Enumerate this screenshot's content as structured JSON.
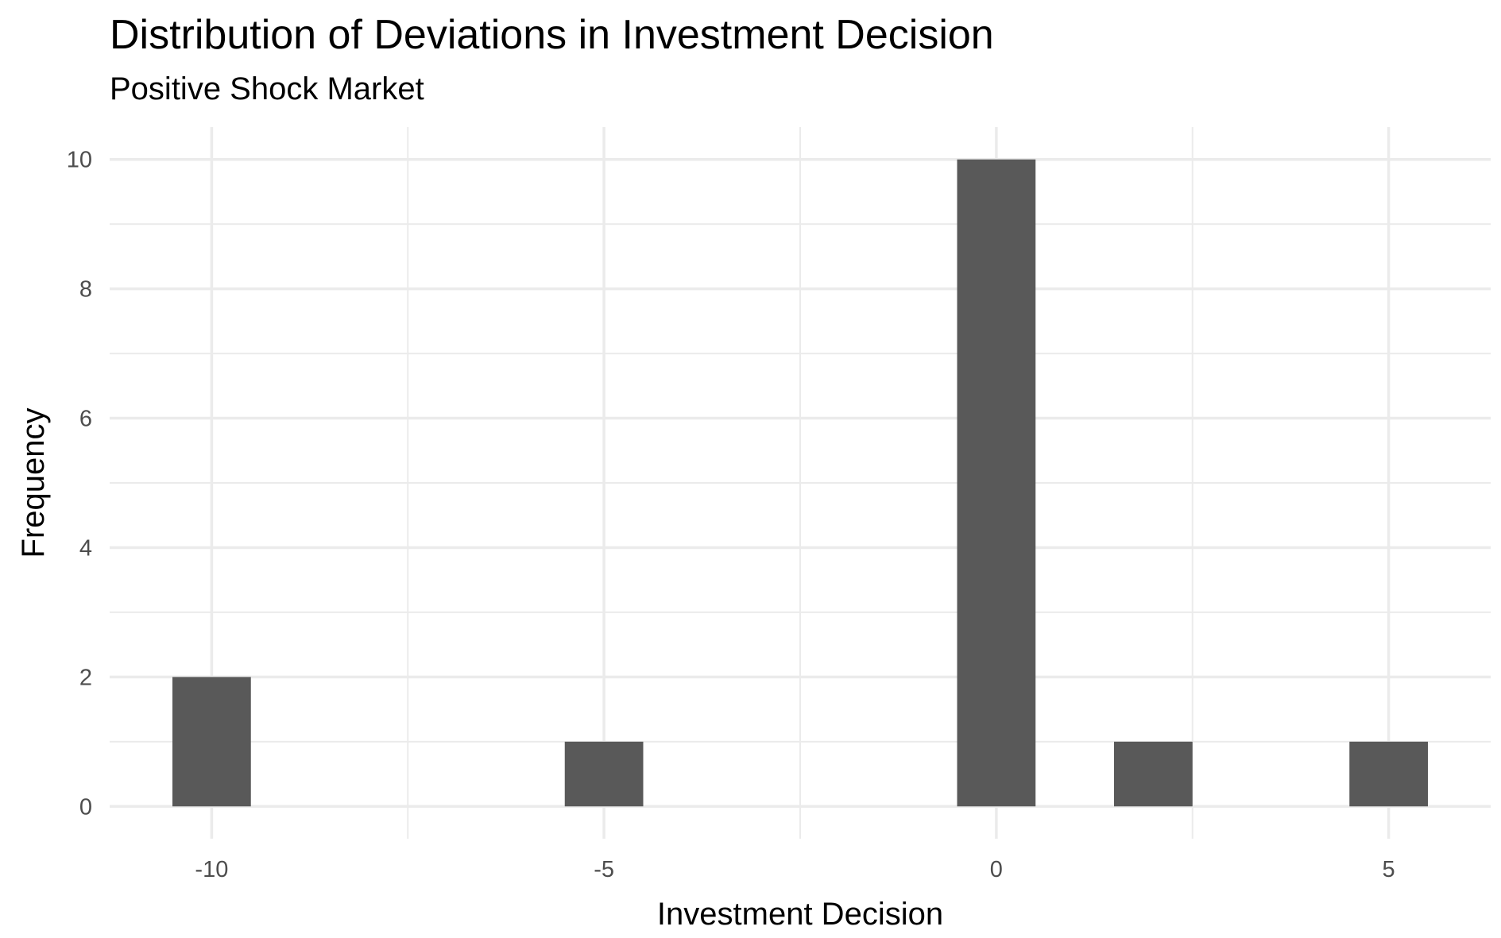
{
  "chart_data": {
    "type": "bar",
    "title": "Distribution of Deviations in Investment Decision",
    "subtitle": "Positive Shock Market",
    "xlabel": "Investment Decision",
    "ylabel": "Frequency",
    "xlim": [
      -11.3,
      6.3
    ],
    "ylim": [
      -0.5,
      10.5
    ],
    "bin_width": 1,
    "x_ticks": [
      -10,
      -5,
      0,
      5
    ],
    "x_tick_labels": [
      "-10",
      "-5",
      "0",
      "5"
    ],
    "y_ticks": [
      0,
      2,
      4,
      6,
      8,
      10
    ],
    "y_tick_labels": [
      "0",
      "2",
      "4",
      "6",
      "8",
      "10"
    ],
    "bins": [
      {
        "x": -10,
        "count": 2
      },
      {
        "x": -5,
        "count": 1
      },
      {
        "x": 0,
        "count": 10
      },
      {
        "x": 2,
        "count": 1
      },
      {
        "x": 5,
        "count": 1
      }
    ],
    "grid": true,
    "bar_color": "#595959",
    "grid_color": "#ebebeb"
  }
}
